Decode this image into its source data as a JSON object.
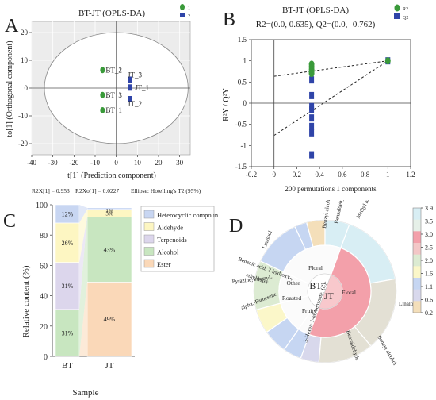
{
  "panels": {
    "A": {
      "letter": "A",
      "title": "BT-JT (OPLS-DA)",
      "legend": [
        "1",
        "2"
      ],
      "xlabel": "t[1] (Prediction component)",
      "ylabel": "to[1] (Orthogonal component)",
      "xticks": [
        -40,
        -30,
        -20,
        -10,
        0,
        10,
        20,
        30
      ],
      "yticks": [
        -20,
        -10,
        0,
        10,
        20
      ],
      "footer": [
        "R2X[1] = 0.953",
        "R2Xo[1] = 0.0227",
        "Ellipse: Hotelling's T2 (95%)"
      ]
    },
    "B": {
      "letter": "B",
      "title": "BT-JT (OPLS-DA)",
      "subtitle": "R2=(0.0, 0.635), Q2=(0.0, -0.762)",
      "legend": [
        "R2",
        "Q2"
      ],
      "xlabel": "200 permutations 1 components",
      "ylabel": "R²Y / Q²Y",
      "xticks": [
        "-0.2",
        "0",
        "0.2",
        "0.4",
        "0.6",
        "0.8",
        "1",
        "1.2"
      ],
      "yticks": [
        "1.5",
        "1",
        "0.5",
        "0",
        "-0.5",
        "-1",
        "-1.5"
      ]
    },
    "C": {
      "letter": "C",
      "ylabel": "Relative content (%)",
      "xlabel": "Sample",
      "yticks": [
        "0",
        "20",
        "40",
        "60",
        "80",
        "100"
      ]
    },
    "D": {
      "letter": "D",
      "colorbar_ticks": [
        "3.9",
        "3.5",
        "3.0",
        "2.5",
        "2.0",
        "1.6",
        "1.1",
        "0.6",
        "0.2"
      ],
      "center": "BT",
      "inner": [
        "Floral",
        "Other",
        "Roasted",
        "Fruity",
        "Floral",
        "JT"
      ],
      "outer_labels": [
        "Methyl nitrobenzoate",
        "Benzaldehyde",
        "Benzyl alcohol",
        "Linalool",
        "Benzoic acid, 2-hydroxy-, ethyl ester",
        "Pyrazine, ethenyl-",
        "alpha.-Farnesene",
        "3-Hexen-1-ol, benzoate, (Z)-",
        "Benzaldehyde",
        "Benzyl alcohol",
        "Linalool"
      ]
    }
  },
  "chart_data": [
    {
      "type": "scatter",
      "title": "BT-JT (OPLS-DA)",
      "xlabel": "t[1] (Prediction component)",
      "ylabel": "to[1] (Orthogonal component)",
      "xlim": [
        -40,
        35
      ],
      "ylim": [
        -24,
        24
      ],
      "series": [
        {
          "name": "1",
          "color": "#3a9a3a",
          "marker": "circle",
          "points": [
            {
              "label": "BT_2",
              "x": -6.5,
              "y": 6.5
            },
            {
              "label": "BT_3",
              "x": -6.5,
              "y": -2.5
            },
            {
              "label": "BT_1",
              "x": -6.5,
              "y": -8.0
            }
          ]
        },
        {
          "name": "2",
          "color": "#2f44a8",
          "marker": "square",
          "points": [
            {
              "label": "JT_3",
              "x": 6.5,
              "y": 3.0
            },
            {
              "label": "JT_1",
              "x": 6.5,
              "y": 0.2
            },
            {
              "label": "JT_2",
              "x": 6.5,
              "y": -4.0
            }
          ]
        }
      ],
      "grid": true
    },
    {
      "type": "scatter",
      "title": "BT-JT (OPLS-DA)",
      "subtitle": "R2=(0.0, 0.635), Q2=(0.0, -0.762)",
      "xlabel": "200 permutations 1 components",
      "ylabel": "R²Y / Q²Y",
      "xlim": [
        -0.2,
        1.2
      ],
      "ylim": [
        -1.5,
        1.5
      ],
      "series": [
        {
          "name": "R2",
          "color": "#3a9a3a",
          "marker": "circle",
          "x": [
            0.33,
            0.33,
            0.33,
            0.33,
            0.33,
            1.0
          ],
          "y": [
            0.92,
            0.86,
            0.8,
            0.74,
            0.7,
            1.0
          ]
        },
        {
          "name": "Q2",
          "color": "#2f44a8",
          "marker": "square",
          "x": [
            0.33,
            0.33,
            0.33,
            0.33,
            0.33,
            0.33,
            0.33,
            0.33,
            0.33,
            1.0
          ],
          "y": [
            0.75,
            0.55,
            0.18,
            -0.08,
            -0.15,
            -0.35,
            -0.55,
            -0.7,
            -1.22,
            1.0
          ]
        }
      ],
      "regression_lines": [
        {
          "name": "R2",
          "intercept": 0.635,
          "end": [
            1.0,
            1.0
          ]
        },
        {
          "name": "Q2",
          "intercept": -0.762,
          "end": [
            1.0,
            1.0
          ]
        }
      ],
      "grid": false
    },
    {
      "type": "bar",
      "stacked": true,
      "xlabel": "Sample",
      "ylabel": "Relative content (%)",
      "categories": [
        "BT",
        "JT"
      ],
      "ylim": [
        0,
        100
      ],
      "series": [
        {
          "name": "Ester",
          "color": "#fad8b8",
          "values": [
            0,
            49
          ],
          "labels": [
            "",
            "49%"
          ]
        },
        {
          "name": "Alcohol",
          "color": "#c8e6c0",
          "values": [
            31,
            43
          ],
          "labels": [
            "31%",
            "43%"
          ]
        },
        {
          "name": "Terpenoids",
          "color": "#dcd6ec",
          "values": [
            31,
            0
          ],
          "labels": [
            "31%",
            ""
          ]
        },
        {
          "name": "Aldehyde",
          "color": "#fdf6c2",
          "values": [
            26,
            5
          ],
          "labels": [
            "26%",
            "5%"
          ]
        },
        {
          "name": "Heterocyclic compound",
          "color": "#c8d6f2",
          "values": [
            12,
            1
          ],
          "labels": [
            "12%",
            "1%"
          ]
        }
      ],
      "legend": [
        "Heterocyclic compound",
        "Aldehyde",
        "Terpenoids",
        "Alcohol",
        "Ester"
      ],
      "legend_position": "right"
    },
    {
      "type": "sunburst",
      "colorbar": {
        "min": 0.2,
        "max": 3.9,
        "ticks": [
          3.9,
          3.5,
          3.0,
          2.5,
          2.0,
          1.6,
          1.1,
          0.6,
          0.2
        ]
      },
      "center": "BT",
      "rings": {
        "level1": [
          {
            "label": "BT",
            "from": 200,
            "to": 20,
            "color": "#ffffff"
          },
          {
            "label": "JT",
            "from": 20,
            "to": 200,
            "color": "#ffffff"
          }
        ],
        "level2": [
          {
            "label": "Floral",
            "from": 295,
            "to": 20,
            "color": "#fbfbfb"
          },
          {
            "label": "Other",
            "from": 255,
            "to": 295,
            "color": "#fbfbfb"
          },
          {
            "label": "Roasted",
            "from": 215,
            "to": 255,
            "color": "#fbfbfb"
          },
          {
            "label": "Fruity",
            "from": 200,
            "to": 215,
            "color": "#fbfbfb"
          },
          {
            "label": "Floral",
            "from": 20,
            "to": 200,
            "color": "#f3a0aa"
          }
        ],
        "level3": [
          {
            "label": "Methyl nitrobenzoate",
            "from": 20,
            "to": 80,
            "value": 2.3,
            "color": "#d8eef4"
          },
          {
            "label": "Linalool",
            "from": 80,
            "to": 140,
            "value": 2.1,
            "color": "#e3e0d4"
          },
          {
            "label": "Benzyl alcohol",
            "from": 140,
            "to": 185,
            "value": 2.6,
            "color": "#e3e0d4"
          },
          {
            "label": "Benzaldehyde",
            "from": 185,
            "to": 200,
            "value": 1.3,
            "color": "#d8d8ec"
          },
          {
            "label": "3-Hexen-1-ol, benzoate, (Z)-",
            "from": 200,
            "to": 215,
            "value": 1.1,
            "color": "#c6d6f2"
          },
          {
            "label": "alpha.-Farnesene",
            "from": 215,
            "to": 235,
            "value": 1.1,
            "color": "#c6d6f2"
          },
          {
            "label": "Pyrazine, ethenyl-",
            "from": 235,
            "to": 255,
            "value": 1.7,
            "color": "#fbf7c9"
          },
          {
            "label": "Benzoic acid, 2-hydroxy-, ethyl ester",
            "from": 255,
            "to": 295,
            "value": 2.0,
            "color": "#dcebd2"
          },
          {
            "label": "Linalool",
            "from": 295,
            "to": 335,
            "value": 1.1,
            "color": "#c6d6f2"
          },
          {
            "label": "Benzyl alcohol",
            "from": 335,
            "to": 345,
            "value": 1.2,
            "color": "#c6d6f2"
          },
          {
            "label": "Benzaldehyde",
            "from": 345,
            "to": 360,
            "value": 2.6,
            "color": "#f4dfba"
          },
          {
            "label": "Methyl nitrobenzoate",
            "from": 0,
            "to": 20,
            "value": 2.3,
            "color": "#d8eef4"
          }
        ]
      }
    }
  ]
}
